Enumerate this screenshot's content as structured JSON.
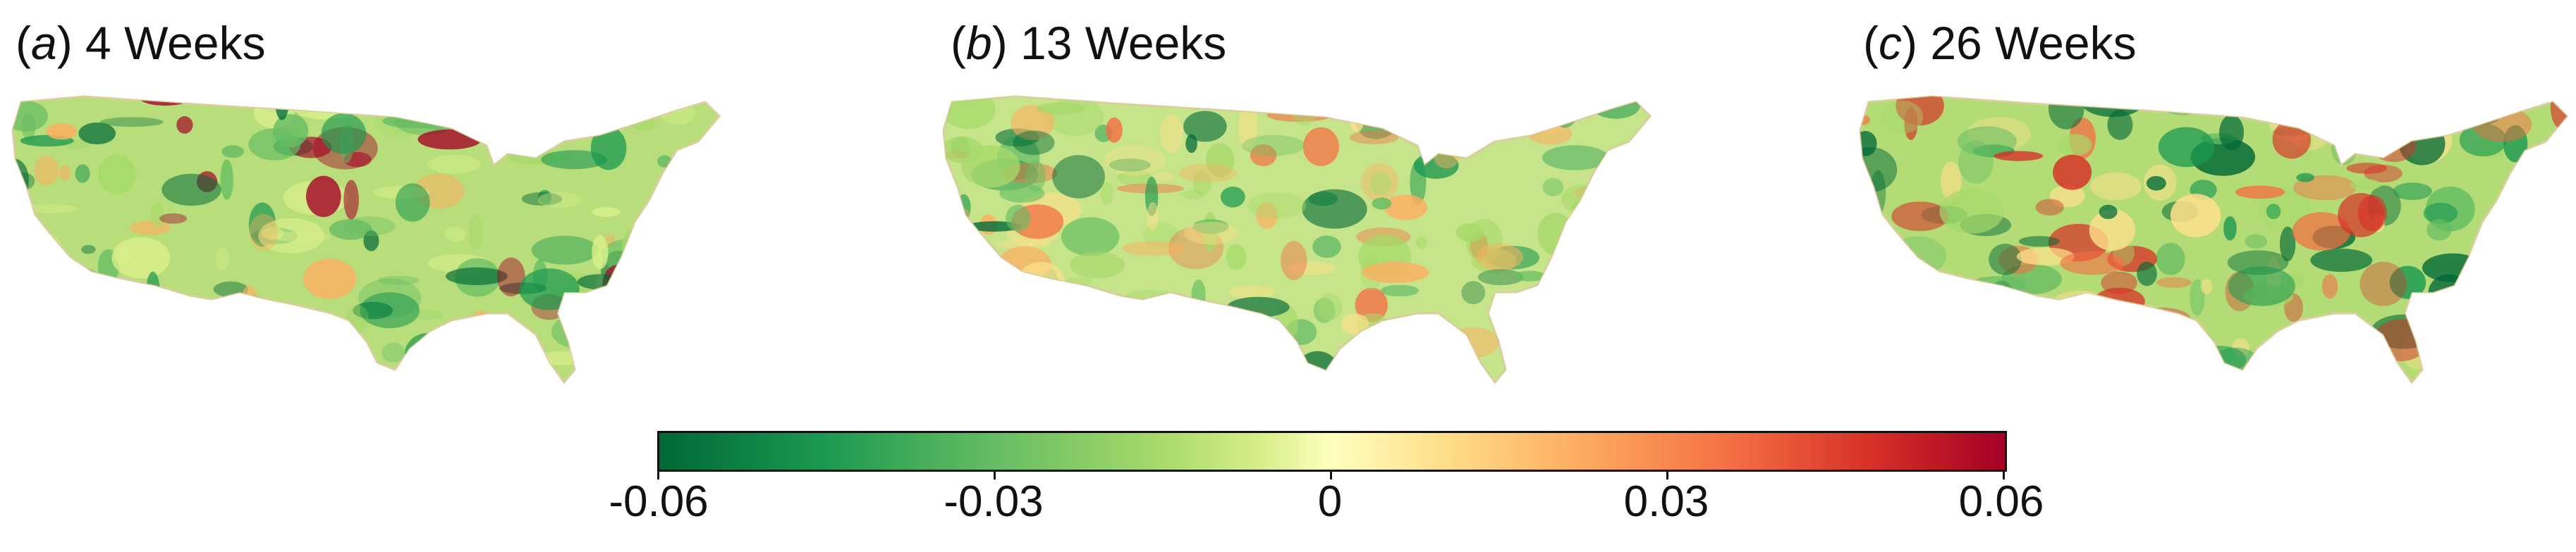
{
  "panels": [
    {
      "letter": "a",
      "title": "4 Weeks"
    },
    {
      "letter": "b",
      "title": "13 Weeks"
    },
    {
      "letter": "c",
      "title": "26 Weeks"
    }
  ],
  "colorbar": {
    "min": -0.06,
    "max": 0.06,
    "ticks": [
      "-0.06",
      "-0.03",
      "0",
      "0.03",
      "0.06"
    ],
    "colors": [
      "#006837",
      "#1a9850",
      "#66bd63",
      "#a6d96a",
      "#d9ef8b",
      "#ffffbf",
      "#fee08b",
      "#fdae61",
      "#f46d43",
      "#d73027",
      "#a50026"
    ],
    "scheme": "green-yellow-red diverging"
  }
}
